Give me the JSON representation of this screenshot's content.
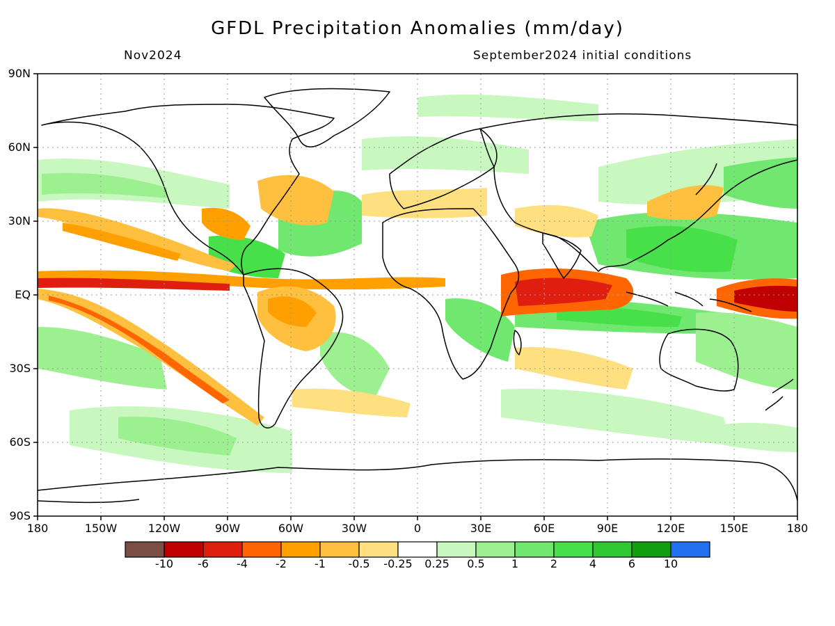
{
  "title": "GFDL Precipitation Anomalies (mm/day)",
  "valid_period": "Nov2024",
  "init_note": "September2024 initial conditions",
  "lat_labels": [
    "90N",
    "60N",
    "30N",
    "EQ",
    "30S",
    "60S",
    "90S"
  ],
  "lon_labels": [
    "180",
    "150W",
    "120W",
    "90W",
    "60W",
    "30W",
    "0",
    "30E",
    "60E",
    "90E",
    "120E",
    "150E",
    "180"
  ],
  "colorbar": {
    "colors": [
      "#7a4e45",
      "#c00000",
      "#e01e10",
      "#ff6600",
      "#ffa000",
      "#ffc040",
      "#ffe080",
      "#ffffff",
      "#c8f8c0",
      "#9cf090",
      "#70e870",
      "#48e048",
      "#30c830",
      "#10a010",
      "#2070f0"
    ],
    "tick_labels": [
      "-10",
      "-6",
      "-4",
      "-2",
      "-1",
      "-0.5",
      "-0.25",
      "0.25",
      "0.5",
      "1",
      "2",
      "4",
      "6",
      "10"
    ]
  },
  "map": {
    "projection": "cylindrical-equidistant",
    "lon_range": [
      -180,
      180
    ],
    "lat_range": [
      -90,
      90
    ],
    "gridlines": true
  }
}
